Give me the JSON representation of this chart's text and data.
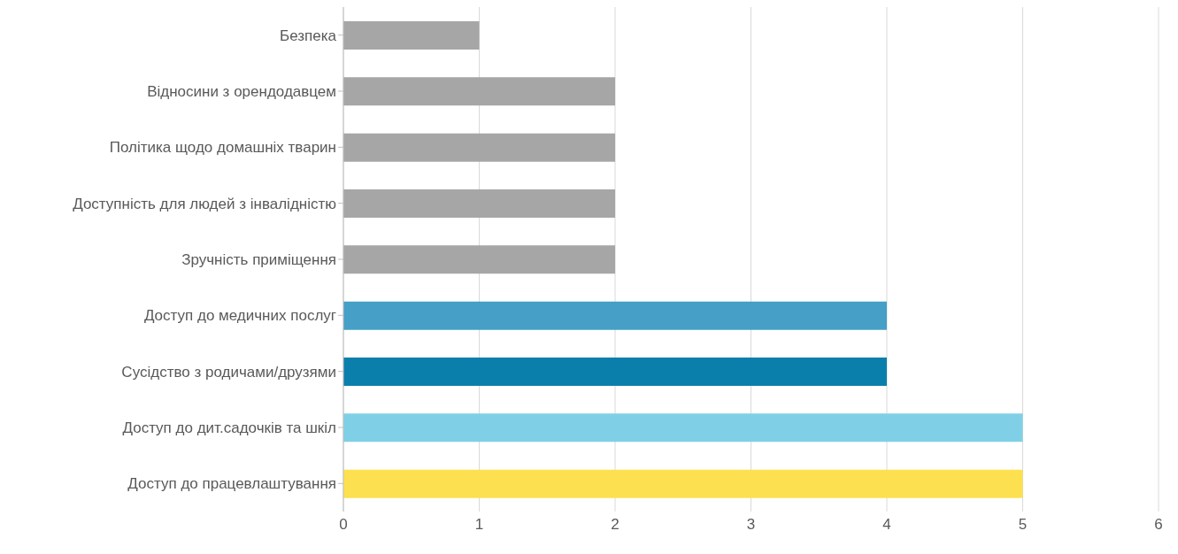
{
  "chart_data": {
    "type": "bar",
    "orientation": "horizontal",
    "categories": [
      "Безпека",
      "Відносини з орендодавцем",
      "Політика щодо домашніх тварин",
      "Доступність для людей з інвалідністю",
      "Зручність приміщення",
      "Доступ до медичних послуг",
      "Сусідство з родичами/друзями",
      "Доступ до дит.садочків та шкіл",
      "Доступ до працевлаштування"
    ],
    "values": [
      1,
      2,
      2,
      2,
      2,
      4,
      4,
      5,
      5
    ],
    "colors": [
      "#a6a6a6",
      "#a6a6a6",
      "#a6a6a6",
      "#a6a6a6",
      "#a6a6a6",
      "#459fc6",
      "#0a7fab",
      "#7fd0e6",
      "#fde04f"
    ],
    "xlim": [
      0,
      6
    ],
    "xticks": [
      0,
      1,
      2,
      3,
      4,
      5,
      6
    ],
    "grid": "x"
  }
}
